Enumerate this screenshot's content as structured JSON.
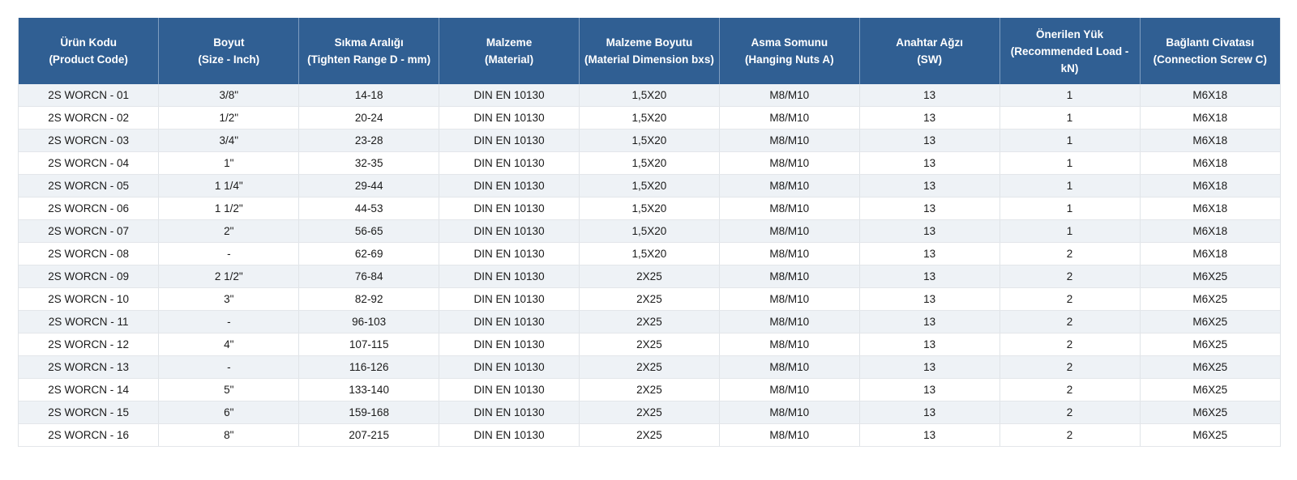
{
  "table": {
    "headers": [
      {
        "line1": "Ürün Kodu",
        "line2": "(Product Code)"
      },
      {
        "line1": "Boyut",
        "line2": "(Size - Inch)"
      },
      {
        "line1": "Sıkma Aralığı",
        "line2": "(Tighten Range D - mm)"
      },
      {
        "line1": "Malzeme",
        "line2": "(Material)"
      },
      {
        "line1": "Malzeme Boyutu",
        "line2": "(Material Dimension bxs)"
      },
      {
        "line1": "Asma Somunu",
        "line2": "(Hanging Nuts A)"
      },
      {
        "line1": "Anahtar Ağzı",
        "line2": "(SW)"
      },
      {
        "line1": "Önerilen Yük",
        "line2": "(Recommended Load - kN)"
      },
      {
        "line1": "Bağlantı Civatası",
        "line2": "(Connection Screw C)"
      }
    ],
    "rows": [
      [
        "2S WORCN - 01",
        "3/8\"",
        "14-18",
        "DIN EN 10130",
        "1,5X20",
        "M8/M10",
        "13",
        "1",
        "M6X18"
      ],
      [
        "2S WORCN - 02",
        "1/2\"",
        "20-24",
        "DIN EN 10130",
        "1,5X20",
        "M8/M10",
        "13",
        "1",
        "M6X18"
      ],
      [
        "2S WORCN - 03",
        "3/4\"",
        "23-28",
        "DIN EN 10130",
        "1,5X20",
        "M8/M10",
        "13",
        "1",
        "M6X18"
      ],
      [
        "2S WORCN - 04",
        "1\"",
        "32-35",
        "DIN EN 10130",
        "1,5X20",
        "M8/M10",
        "13",
        "1",
        "M6X18"
      ],
      [
        "2S WORCN - 05",
        "1 1/4\"",
        "29-44",
        "DIN EN 10130",
        "1,5X20",
        "M8/M10",
        "13",
        "1",
        "M6X18"
      ],
      [
        "2S WORCN - 06",
        "1 1/2\"",
        "44-53",
        "DIN EN 10130",
        "1,5X20",
        "M8/M10",
        "13",
        "1",
        "M6X18"
      ],
      [
        "2S WORCN - 07",
        "2\"",
        "56-65",
        "DIN EN 10130",
        "1,5X20",
        "M8/M10",
        "13",
        "1",
        "M6X18"
      ],
      [
        "2S WORCN - 08",
        "-",
        "62-69",
        "DIN EN 10130",
        "1,5X20",
        "M8/M10",
        "13",
        "2",
        "M6X18"
      ],
      [
        "2S WORCN - 09",
        "2 1/2\"",
        "76-84",
        "DIN EN 10130",
        "2X25",
        "M8/M10",
        "13",
        "2",
        "M6X25"
      ],
      [
        "2S WORCN - 10",
        "3\"",
        "82-92",
        "DIN EN 10130",
        "2X25",
        "M8/M10",
        "13",
        "2",
        "M6X25"
      ],
      [
        "2S WORCN - 11",
        "-",
        "96-103",
        "DIN EN 10130",
        "2X25",
        "M8/M10",
        "13",
        "2",
        "M6X25"
      ],
      [
        "2S WORCN - 12",
        "4\"",
        "107-115",
        "DIN EN 10130",
        "2X25",
        "M8/M10",
        "13",
        "2",
        "M6X25"
      ],
      [
        "2S WORCN - 13",
        "-",
        "116-126",
        "DIN EN 10130",
        "2X25",
        "M8/M10",
        "13",
        "2",
        "M6X25"
      ],
      [
        "2S WORCN - 14",
        "5\"",
        "133-140",
        "DIN EN 10130",
        "2X25",
        "M8/M10",
        "13",
        "2",
        "M6X25"
      ],
      [
        "2S WORCN - 15",
        "6\"",
        "159-168",
        "DIN EN 10130",
        "2X25",
        "M8/M10",
        "13",
        "2",
        "M6X25"
      ],
      [
        "2S WORCN - 16",
        "8\"",
        "207-215",
        "DIN EN 10130",
        "2X25",
        "M8/M10",
        "13",
        "2",
        "M6X25"
      ]
    ]
  },
  "colors": {
    "header_bg": "#305f93",
    "header_text": "#ffffff",
    "row_stripe": "#eef2f6",
    "row_plain": "#ffffff"
  }
}
